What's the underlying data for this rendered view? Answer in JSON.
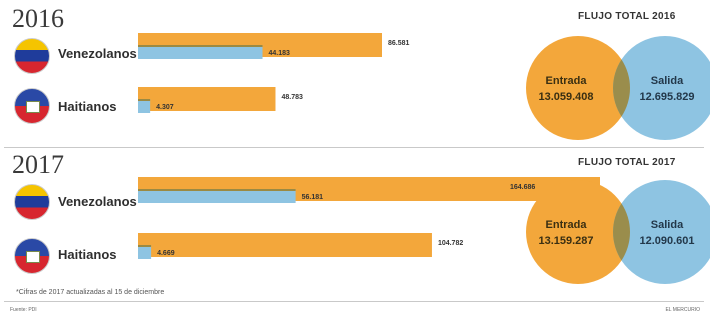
{
  "colors": {
    "entrada": "#f3a73b",
    "salida": "#8ec4e2",
    "overlap": "#9b8a43",
    "text": "#333333"
  },
  "panels": [
    {
      "year": "2016",
      "venn": {
        "title": "FLUJO TOTAL 2016",
        "entrada_label": "Entrada",
        "entrada_value": "13.059.408",
        "salida_label": "Salida",
        "salida_value": "12.695.829"
      },
      "rows": [
        {
          "flag": "venezuela-flag",
          "country": "Venezolanos",
          "entrada": 86581,
          "salida": 44183,
          "entrada_label": "86.581",
          "salida_label": "44.183"
        },
        {
          "flag": "haiti-flag",
          "country": "Haitianos",
          "entrada": 48783,
          "salida": 4307,
          "entrada_label": "48.783",
          "salida_label": "4.307"
        }
      ]
    },
    {
      "year": "2017",
      "venn": {
        "title": "FLUJO TOTAL 2017",
        "entrada_label": "Entrada",
        "entrada_value": "13.159.287",
        "salida_label": "Salida",
        "salida_value": "12.090.601"
      },
      "rows": [
        {
          "flag": "venezuela-flag",
          "country": "Venezolanos",
          "entrada": 164686,
          "salida": 56181,
          "entrada_label": "164.686",
          "salida_label": "56.181"
        },
        {
          "flag": "haiti-flag",
          "country": "Haitianos",
          "entrada": 104782,
          "salida": 4669,
          "entrada_label": "104.782",
          "salida_label": "4.669"
        }
      ]
    }
  ],
  "chart_data": {
    "type": "bar",
    "categories": [
      "Venezolanos 2016",
      "Haitianos 2016",
      "Venezolanos 2017",
      "Haitianos 2017"
    ],
    "series": [
      {
        "name": "Entrada",
        "values": [
          86581,
          48783,
          164686,
          104782
        ]
      },
      {
        "name": "Salida",
        "values": [
          44183,
          4307,
          56181,
          4669
        ]
      }
    ],
    "totals": [
      {
        "year": "2016",
        "entrada": 13059408,
        "salida": 12695829
      },
      {
        "year": "2017",
        "entrada": 13159287,
        "salida": 12090601
      }
    ]
  },
  "footnote": "*Cifras de 2017 actualizadas al 15 de diciembre",
  "source_label": "Fuente: PDI",
  "brand": "EL MERCURIO"
}
